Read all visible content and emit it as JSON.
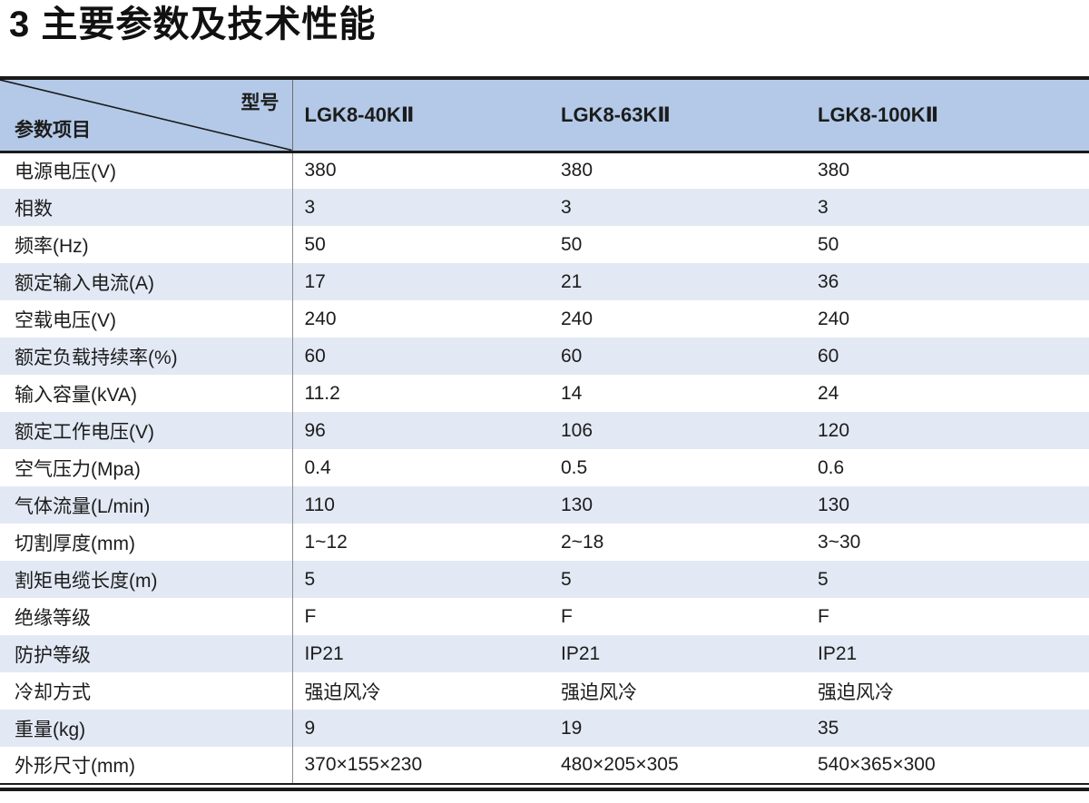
{
  "page": {
    "title": "3 主要参数及技术性能"
  },
  "table": {
    "corner": {
      "top_right": "型号",
      "bottom_left": "参数项目"
    },
    "models": [
      "LGK8-40KⅡ",
      "LGK8-63KⅡ",
      "LGK8-100KⅡ"
    ],
    "rows": [
      {
        "label": "电源电压(V)",
        "values": [
          "380",
          "380",
          "380"
        ]
      },
      {
        "label": "相数",
        "values": [
          "3",
          "3",
          "3"
        ]
      },
      {
        "label": "频率(Hz)",
        "values": [
          "50",
          "50",
          "50"
        ]
      },
      {
        "label": "额定输入电流(A)",
        "values": [
          "17",
          "21",
          "36"
        ]
      },
      {
        "label": "空载电压(V)",
        "values": [
          "240",
          "240",
          "240"
        ]
      },
      {
        "label": "额定负载持续率(%)",
        "values": [
          "60",
          "60",
          "60"
        ]
      },
      {
        "label": "输入容量(kVA)",
        "values": [
          "11.2",
          "14",
          "24"
        ]
      },
      {
        "label": "额定工作电压(V)",
        "values": [
          "96",
          "106",
          "120"
        ]
      },
      {
        "label": "空气压力(Mpa)",
        "values": [
          "0.4",
          "0.5",
          "0.6"
        ]
      },
      {
        "label": "气体流量(L/min)",
        "values": [
          "110",
          "130",
          "130"
        ]
      },
      {
        "label": "切割厚度(mm)",
        "values": [
          "1~12",
          "2~18",
          "3~30"
        ]
      },
      {
        "label": "割矩电缆长度(m)",
        "values": [
          "5",
          "5",
          "5"
        ]
      },
      {
        "label": "绝缘等级",
        "values": [
          "F",
          "F",
          "F"
        ]
      },
      {
        "label": "防护等级",
        "values": [
          "IP21",
          "IP21",
          "IP21"
        ]
      },
      {
        "label": "冷却方式",
        "values": [
          "强迫风冷",
          "强迫风冷",
          "强迫风冷"
        ]
      },
      {
        "label": "重量(kg)",
        "values": [
          "9",
          "19",
          "35"
        ]
      },
      {
        "label": "外形尺寸(mm)",
        "values": [
          "370×155×230",
          "480×205×305",
          "540×365×300"
        ]
      }
    ],
    "colors": {
      "header_bg": "#b3c9e7",
      "row_alt_bg": "#e2e9f4",
      "border": "#1a1a1a",
      "divider_header": "#6e6e6e",
      "divider_body": "#8c8c8c"
    }
  }
}
